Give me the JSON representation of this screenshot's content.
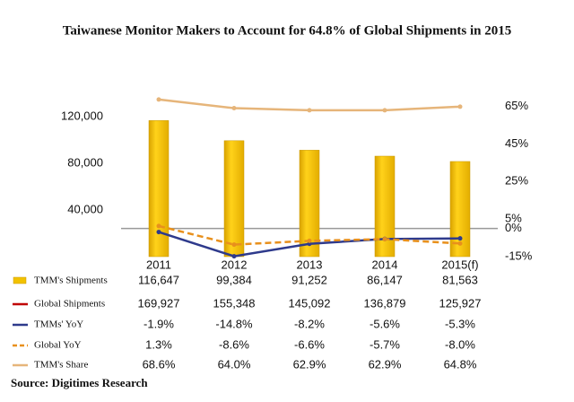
{
  "chart_data": {
    "type": "bar",
    "title": "Taiwanese Monitor Makers to Account for 64.8% of Global Shipments in 2015",
    "source": "Source: Digitimes Research",
    "categories": [
      "2011",
      "2012",
      "2013",
      "2014",
      "2015(f)"
    ],
    "ylim": [
      0,
      145000
    ],
    "yticks": [
      {
        "value": 40000,
        "label": "40,000"
      },
      {
        "value": 80000,
        "label": "80,000"
      },
      {
        "value": 120000,
        "label": "120,000"
      }
    ],
    "y2lim": [
      -15,
      75
    ],
    "y2ticks": [
      {
        "value": 65,
        "label": "65%"
      },
      {
        "value": 45,
        "label": "45%"
      },
      {
        "value": 25,
        "label": "25%"
      },
      {
        "value": 5,
        "label": "5%"
      },
      {
        "value": 0,
        "label": "0%"
      },
      {
        "value": -15,
        "label": "-15%"
      }
    ],
    "series": [
      {
        "name": "TMM's Shipments",
        "color": "#f2c200",
        "plot": "bar",
        "axis": "y",
        "values": [
          116647,
          99384,
          91252,
          86147,
          81563
        ],
        "value_labels": [
          "116,647",
          "99,384",
          "91,252",
          "86,147",
          "81,563"
        ]
      },
      {
        "name": "Global Shipments",
        "color": "#c00000",
        "plot": "none",
        "axis": "y",
        "values": [
          169927,
          155348,
          145092,
          136879,
          125927
        ],
        "value_labels": [
          "169,927",
          "155,348",
          "145,092",
          "136,879",
          "125,927"
        ]
      },
      {
        "name": "TMMs' YoY",
        "color": "#2e3a8c",
        "plot": "line",
        "axis": "y2",
        "values": [
          -1.9,
          -14.8,
          -8.2,
          -5.6,
          -5.3
        ],
        "value_labels": [
          "-1.9%",
          "-14.8%",
          "-8.2%",
          "-5.6%",
          "-5.3%"
        ]
      },
      {
        "name": "Global YoY",
        "color": "#e8901c",
        "plot": "dashed",
        "axis": "y2",
        "values": [
          1.3,
          -8.6,
          -6.6,
          -5.7,
          -8.0
        ],
        "value_labels": [
          "1.3%",
          "-8.6%",
          "-6.6%",
          "-5.7%",
          "-8.0%"
        ]
      },
      {
        "name": "TMM's Share",
        "color": "#e6b57a",
        "plot": "line",
        "axis": "y2",
        "values": [
          68.6,
          64.0,
          62.9,
          62.9,
          64.8
        ],
        "value_labels": [
          "68.6%",
          "64.0%",
          "62.9%",
          "62.9%",
          "64.8%"
        ]
      }
    ]
  }
}
